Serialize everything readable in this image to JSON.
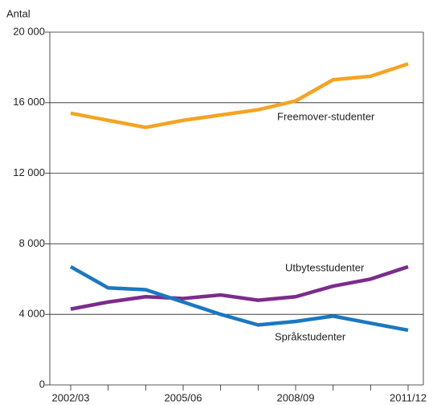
{
  "chart_data": {
    "type": "line",
    "y_label": "Antal",
    "categories": [
      "2002/03",
      null,
      null,
      "2005/06",
      null,
      null,
      "2008/09",
      null,
      null,
      "2011/12"
    ],
    "series": [
      {
        "name": "Freemover-studenter",
        "color": "#f4a422",
        "values": [
          15400,
          15000,
          14600,
          15000,
          15300,
          15600,
          16100,
          17300,
          17500,
          18200
        ]
      },
      {
        "name": "Utbytesstudenter",
        "color": "#7b2c8c",
        "values": [
          4300,
          4700,
          5000,
          4900,
          5100,
          4800,
          5000,
          5600,
          6000,
          6700
        ]
      },
      {
        "name": "Språkstudenter",
        "color": "#1a78c0",
        "values": [
          6700,
          5500,
          5400,
          4700,
          4000,
          3400,
          3600,
          3900,
          3500,
          3100
        ]
      }
    ],
    "ylim": [
      0,
      20000
    ],
    "yticks": [
      0,
      {
        "value": 4000,
        "label": "4 000"
      },
      {
        "value": 8000,
        "label": "8 000"
      },
      {
        "value": 12000,
        "label": "12 000"
      },
      {
        "value": 16000,
        "label": "16 000"
      },
      {
        "value": 20000,
        "label": "20 000"
      }
    ],
    "grid": true
  }
}
